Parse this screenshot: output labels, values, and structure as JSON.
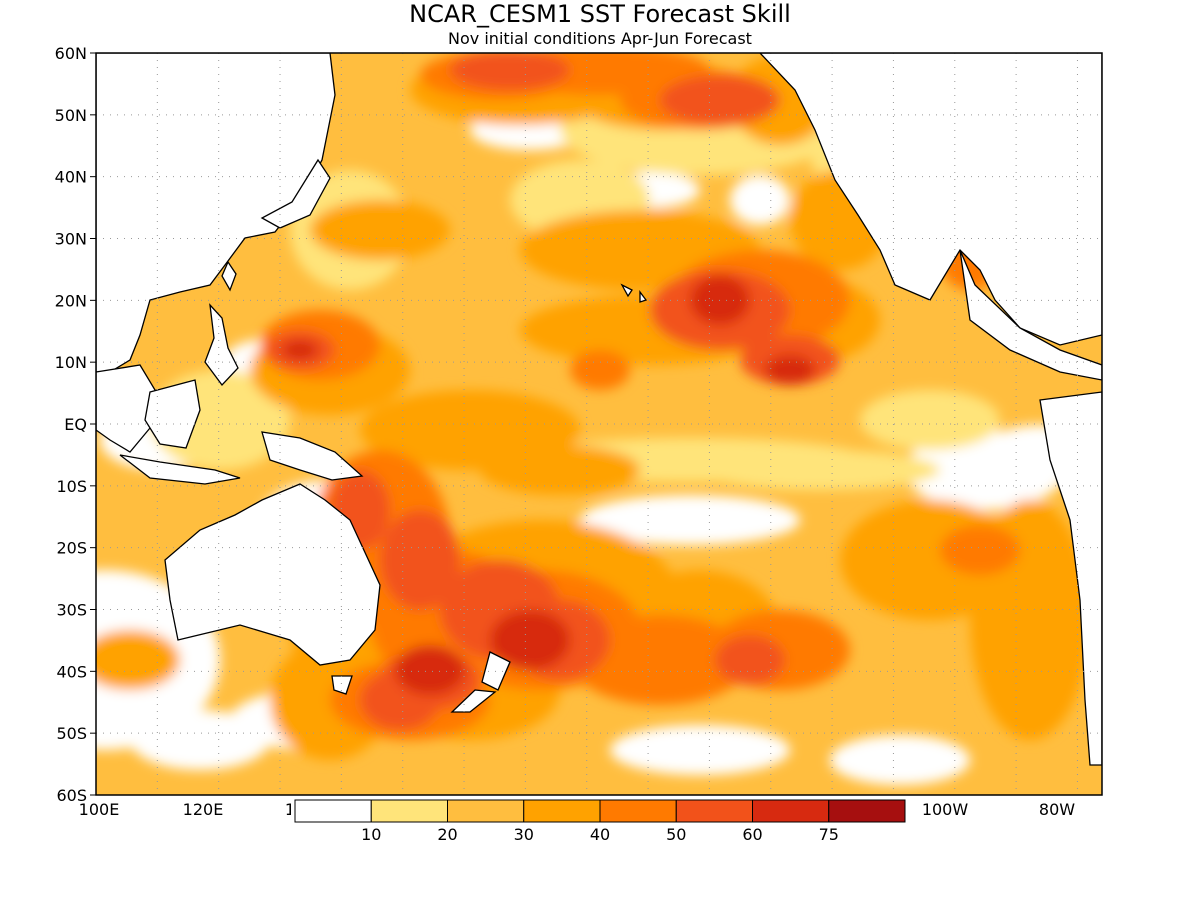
{
  "title": "NCAR_CESM1  SST Forecast Skill",
  "subtitle": "Nov initial conditions   Apr-Jun Forecast",
  "lat_labels": [
    "60N",
    "50N",
    "40N",
    "30N",
    "20N",
    "10N",
    "EQ",
    "10S",
    "20S",
    "30S",
    "40S",
    "50S",
    "60S"
  ],
  "lon_labels": [
    "100E",
    "120E",
    "1",
    "100W",
    "80W"
  ],
  "colorbar": {
    "tick_labels": [
      "10",
      "20",
      "30",
      "40",
      "50",
      "60",
      "75"
    ],
    "colors": [
      "#ffffff",
      "#ffe47a",
      "#ffbe3f",
      "#ffa200",
      "#ff7a00",
      "#f2521a",
      "#d72a10",
      "#a60f0f"
    ]
  },
  "map_colors": {
    "c1": "#ffe47a",
    "c2": "#ffbe3f",
    "c3": "#ffa200",
    "c4": "#ff7a00",
    "c5": "#f2521a",
    "c6": "#d72a10"
  }
}
